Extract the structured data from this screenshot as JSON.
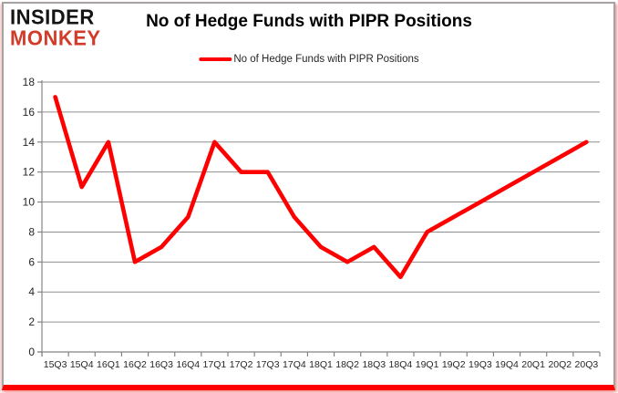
{
  "logo": {
    "line1": "INSIDER",
    "line2": "MONKEY"
  },
  "header": {
    "title": "No of Hedge Funds with PIPR Positions"
  },
  "legend": {
    "label": "No of Hedge Funds with PIPR Positions"
  },
  "colors": {
    "line": "#fe0000",
    "grid": "#8f8f8f",
    "axis": "#858585",
    "tick_label": "#262626",
    "title": "#000000",
    "logo_insider": "#141414",
    "logo_monkey": "#d23b2a",
    "frame_border": "#a4a4a4",
    "frame_bottom_bar": "#fe0000"
  },
  "chart_data": {
    "type": "line",
    "title": "No of Hedge Funds with PIPR Positions",
    "xlabel": "",
    "ylabel": "",
    "categories": [
      "15Q3",
      "15Q4",
      "16Q1",
      "16Q2",
      "16Q3",
      "16Q4",
      "17Q1",
      "17Q2",
      "17Q3",
      "17Q4",
      "18Q1",
      "18Q2",
      "18Q3",
      "18Q4",
      "19Q1",
      "19Q2",
      "19Q3",
      "19Q4",
      "20Q1",
      "20Q2",
      "20Q3"
    ],
    "series": [
      {
        "name": "No of Hedge Funds with PIPR Positions",
        "values": [
          17,
          11,
          14,
          6,
          7,
          9,
          14,
          12,
          12,
          9,
          7,
          6,
          7,
          5,
          8,
          9,
          10,
          11,
          12,
          13,
          14
        ]
      }
    ],
    "ylim": [
      0,
      18
    ],
    "ytick_step": 2,
    "grid": "horizontal-gray-lines",
    "legend_position": "top-center"
  }
}
